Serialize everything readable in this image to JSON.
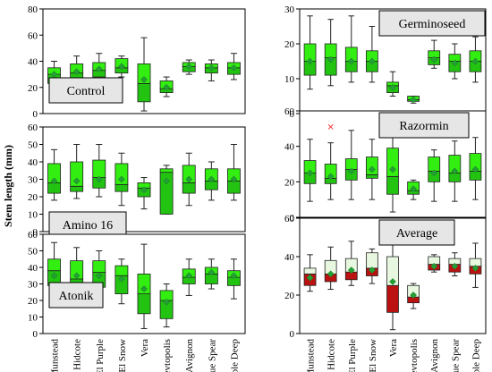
{
  "figure": {
    "ylabel": "Stem length (mm)",
    "categories": [
      "Munstead",
      "Hidcote",
      "El Purple",
      "El Snow",
      "Vera",
      "Sevtopolis",
      "Avignon",
      "Blue Spear",
      "Purple Deep"
    ]
  },
  "colors": {
    "green_box": "#33ee11",
    "green_lower": "#22c411",
    "mean_marker": "#22a033",
    "avg_lower": "#bb1111",
    "avg_upper": "#e8f8e0",
    "outlier": "#ff3b3b"
  },
  "chart_data": [
    {
      "type": "box",
      "title": "Control",
      "ylim": [
        0,
        80
      ],
      "yticks": [
        0,
        20,
        40,
        60,
        80
      ],
      "categories": [
        "Munstead",
        "Hidcote",
        "El Purple",
        "El Snow",
        "Vera",
        "Sevtopolis",
        "Avignon",
        "Blue Spear",
        "Purple Deep"
      ],
      "boxes": [
        {
          "min": 20,
          "q1": 23,
          "median": 30,
          "q3": 35,
          "max": 40,
          "mean": 30
        },
        {
          "min": 21,
          "q1": 26,
          "median": 31,
          "q3": 38,
          "max": 44,
          "mean": 32
        },
        {
          "min": 23,
          "q1": 28,
          "median": 33,
          "q3": 39,
          "max": 46,
          "mean": 34
        },
        {
          "min": 28,
          "q1": 31,
          "median": 35,
          "q3": 42,
          "max": 44,
          "mean": 36
        },
        {
          "min": 2,
          "q1": 9,
          "median": 23,
          "q3": 38,
          "max": 58,
          "mean": 26
        },
        {
          "min": 13,
          "q1": 16,
          "median": 19,
          "q3": 25,
          "max": 28,
          "mean": 20
        },
        {
          "min": 30,
          "q1": 32,
          "median": 36,
          "q3": 39,
          "max": 41,
          "mean": 36
        },
        {
          "min": 25,
          "q1": 31,
          "median": 35,
          "q3": 38,
          "max": 41,
          "mean": 35
        },
        {
          "min": 26,
          "q1": 30,
          "median": 35,
          "q3": 39,
          "max": 46,
          "mean": 35
        }
      ]
    },
    {
      "type": "box",
      "title": "Germinoseed",
      "ylim": [
        0,
        30
      ],
      "yticks": [
        0,
        10,
        20,
        30
      ],
      "categories": [
        "Munstead",
        "Hidcote",
        "El Purple",
        "El Snow",
        "Vera",
        "Sevtopolis",
        "Avignon",
        "Blue Spear",
        "Purple Deep"
      ],
      "boxes": [
        {
          "min": 7,
          "q1": 11,
          "median": 15,
          "q3": 20,
          "max": 28,
          "mean": 15
        },
        {
          "min": 8,
          "q1": 11,
          "median": 16,
          "q3": 20,
          "max": 27,
          "mean": 15.5
        },
        {
          "min": 9,
          "q1": 12,
          "median": 15,
          "q3": 19,
          "max": 28,
          "mean": 15
        },
        {
          "min": 9,
          "q1": 12,
          "median": 15,
          "q3": 18,
          "max": 25,
          "mean": 15
        },
        {
          "min": 5,
          "q1": 6,
          "median": 8,
          "q3": 9,
          "max": 12,
          "mean": 7.5
        },
        {
          "min": 3,
          "q1": 3.5,
          "median": 4,
          "q3": 5,
          "max": 5,
          "mean": 4
        },
        {
          "min": 13,
          "q1": 14,
          "median": 16,
          "q3": 18,
          "max": 21,
          "mean": 15.5
        },
        {
          "min": 10,
          "q1": 12,
          "median": 15,
          "q3": 17,
          "max": 20,
          "mean": 14.5
        },
        {
          "min": 9,
          "q1": 12,
          "median": 15,
          "q3": 18,
          "max": 22,
          "mean": 15
        }
      ]
    },
    {
      "type": "box",
      "title": "Amino 16",
      "ylim": [
        0,
        60
      ],
      "yticks": [
        0,
        10,
        20,
        30,
        40,
        50,
        60
      ],
      "categories": [
        "Munstead",
        "Hidcote",
        "El Purple",
        "El Snow",
        "Vera",
        "Sevtopolis",
        "Avignon",
        "Blue Spear",
        "Purple Deep"
      ],
      "boxes": [
        {
          "min": 18,
          "q1": 22,
          "median": 28,
          "q3": 39,
          "max": 47,
          "mean": 29
        },
        {
          "min": 19,
          "q1": 23,
          "median": 26,
          "q3": 40,
          "max": 50,
          "mean": 29
        },
        {
          "min": 20,
          "q1": 25,
          "median": 31,
          "q3": 41,
          "max": 50,
          "mean": 30
        },
        {
          "min": 15,
          "q1": 23,
          "median": 27,
          "q3": 39,
          "max": 45,
          "mean": 30
        },
        {
          "min": 13,
          "q1": 20,
          "median": 25,
          "q3": 28,
          "max": 31,
          "mean": 24
        },
        {
          "min": 10,
          "q1": 10,
          "median": 34,
          "q3": 36,
          "max": 38,
          "mean": 29
        },
        {
          "min": 15,
          "q1": 22,
          "median": 28,
          "q3": 38,
          "max": 45,
          "mean": 30
        },
        {
          "min": 18,
          "q1": 24,
          "median": 29,
          "q3": 36,
          "max": 40,
          "mean": 30
        },
        {
          "min": 18,
          "q1": 22,
          "median": 29,
          "q3": 36,
          "max": 50,
          "mean": 30
        }
      ]
    },
    {
      "type": "box",
      "title": "Razormin",
      "ylim": [
        0,
        60
      ],
      "yticks": [
        0,
        20,
        40,
        60
      ],
      "categories": [
        "Munstead",
        "Hidcote",
        "El Purple",
        "El Snow",
        "Vera",
        "Sevtopolis",
        "Avignon",
        "Blue Spear",
        "Purple Deep"
      ],
      "boxes": [
        {
          "min": 9,
          "q1": 19,
          "median": 25,
          "q3": 32,
          "max": 44,
          "mean": 25,
          "outliers": []
        },
        {
          "min": 10,
          "q1": 19,
          "median": 22,
          "q3": 30,
          "max": 42,
          "mean": 23,
          "outliers": [
            51
          ]
        },
        {
          "min": 10,
          "q1": 21,
          "median": 27,
          "q3": 33,
          "max": 49,
          "mean": 26,
          "outliers": []
        },
        {
          "min": 10,
          "q1": 22,
          "median": 24,
          "q3": 34,
          "max": 44,
          "mean": 27,
          "outliers": []
        },
        {
          "min": 3,
          "q1": 13,
          "median": 23,
          "q3": 39,
          "max": 54,
          "mean": 27,
          "outliers": []
        },
        {
          "min": 10,
          "q1": 13,
          "median": 15,
          "q3": 20,
          "max": 21,
          "mean": 16,
          "outliers": []
        },
        {
          "min": 9,
          "q1": 20,
          "median": 26,
          "q3": 34,
          "max": 38,
          "mean": 25,
          "outliers": []
        },
        {
          "min": 9,
          "q1": 20,
          "median": 25,
          "q3": 35,
          "max": 43,
          "mean": 26,
          "outliers": []
        },
        {
          "min": 10,
          "q1": 21,
          "median": 26,
          "q3": 36,
          "max": 45,
          "mean": 27,
          "outliers": []
        }
      ]
    },
    {
      "type": "box",
      "title": "Atonik",
      "ylim": [
        0,
        60
      ],
      "yticks": [
        0,
        10,
        20,
        30,
        40,
        50,
        60
      ],
      "categories": [
        "Munstead",
        "Hidcote",
        "El Purple",
        "El Snow",
        "Vera",
        "Sevtopolis",
        "Avignon",
        "Blue Spear",
        "Purple Deep"
      ],
      "boxes": [
        {
          "min": 21,
          "q1": 29,
          "median": 38,
          "q3": 45,
          "max": 55,
          "mean": 35
        },
        {
          "min": 22,
          "q1": 28,
          "median": 33,
          "q3": 44,
          "max": 52,
          "mean": 35
        },
        {
          "min": 22,
          "q1": 28,
          "median": 37,
          "q3": 44,
          "max": 50,
          "mean": 35
        },
        {
          "min": 18,
          "q1": 24,
          "median": 35,
          "q3": 41,
          "max": 45,
          "mean": 33
        },
        {
          "min": 3,
          "q1": 12,
          "median": 24,
          "q3": 36,
          "max": 54,
          "mean": 27
        },
        {
          "min": 4,
          "q1": 9,
          "median": 20,
          "q3": 26,
          "max": 30,
          "mean": 19
        },
        {
          "min": 23,
          "q1": 30,
          "median": 34,
          "q3": 39,
          "max": 45,
          "mean": 35
        },
        {
          "min": 27,
          "q1": 30,
          "median": 36,
          "q3": 40,
          "max": 45,
          "mean": 37
        },
        {
          "min": 21,
          "q1": 29,
          "median": 34,
          "q3": 38,
          "max": 45,
          "mean": 35
        }
      ]
    },
    {
      "type": "box",
      "title": "Average",
      "ylim": [
        0,
        60
      ],
      "yticks": [
        0,
        20,
        40,
        60
      ],
      "categories": [
        "Munstead",
        "Hidcote",
        "El Purple",
        "El Snow",
        "Vera",
        "Sevtopolis",
        "Avignon",
        "Blue Spear",
        "Purple Deep"
      ],
      "boxes": [
        {
          "min": 22,
          "q1": 25,
          "median": 31,
          "q3": 34,
          "max": 41,
          "mean": 29
        },
        {
          "min": 23,
          "q1": 27,
          "median": 31,
          "q3": 38,
          "max": 45,
          "mean": 31
        },
        {
          "min": 25,
          "q1": 28,
          "median": 32,
          "q3": 39,
          "max": 48,
          "mean": 33
        },
        {
          "min": 26,
          "q1": 30,
          "median": 34,
          "q3": 42,
          "max": 44,
          "mean": 33
        },
        {
          "min": 2,
          "q1": 11,
          "median": 25,
          "q3": 40,
          "max": 56,
          "mean": 27
        },
        {
          "min": 13,
          "q1": 16,
          "median": 19,
          "q3": 25,
          "max": 26,
          "mean": 20
        },
        {
          "min": 32,
          "q1": 33,
          "median": 36,
          "q3": 40,
          "max": 41,
          "mean": 35
        },
        {
          "min": 30,
          "q1": 32,
          "median": 36,
          "q3": 39,
          "max": 42,
          "mean": 35
        },
        {
          "min": 24,
          "q1": 31,
          "median": 35,
          "q3": 39,
          "max": 47,
          "mean": 34
        }
      ]
    }
  ]
}
